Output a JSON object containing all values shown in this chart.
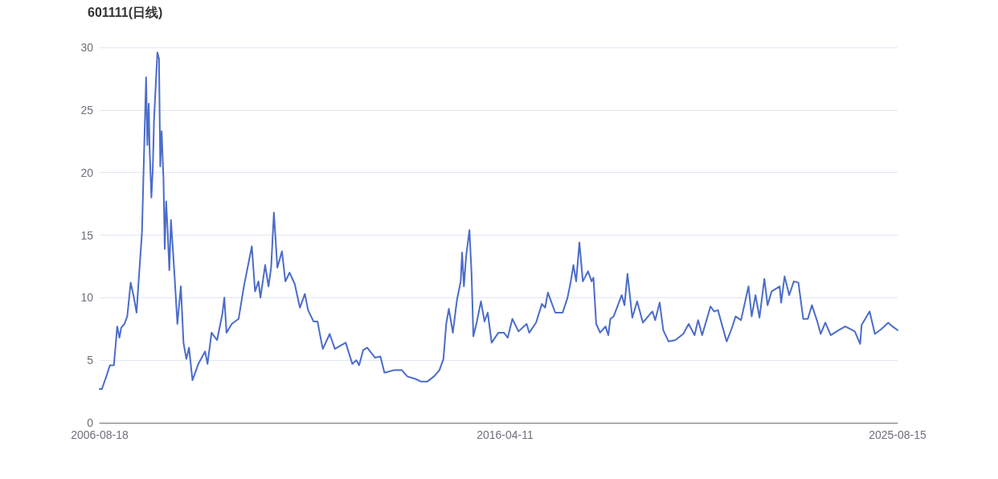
{
  "chart_data": {
    "type": "line",
    "title": "601111(日线)",
    "x": [
      "2006-08-18",
      "2006-09-07",
      "2006-10-11",
      "2006-11-16",
      "2006-12-20",
      "2007-01-18",
      "2007-02-06",
      "2007-02-22",
      "2007-03-22",
      "2007-04-15",
      "2007-05-15",
      "2007-06-12",
      "2007-07-05",
      "2007-07-28",
      "2007-08-21",
      "2007-09-07",
      "2007-09-26",
      "2007-10-07",
      "2007-10-19",
      "2007-10-26",
      "2007-11-11",
      "2007-11-23",
      "2007-12-04",
      "2007-12-15",
      "2008-01-02",
      "2008-01-16",
      "2008-01-27",
      "2008-02-08",
      "2008-02-24",
      "2008-03-06",
      "2008-03-18",
      "2008-03-29",
      "2008-04-15",
      "2008-04-29",
      "2008-05-26",
      "2008-06-24",
      "2008-07-24",
      "2008-08-16",
      "2008-09-10",
      "2008-10-03",
      "2008-11-02",
      "2008-12-23",
      "2009-02-20",
      "2009-03-13",
      "2009-04-17",
      "2009-06-04",
      "2009-07-20",
      "2009-08-06",
      "2009-08-25",
      "2009-10-10",
      "2009-12-08",
      "2010-01-23",
      "2010-04-02",
      "2010-04-30",
      "2010-05-30",
      "2010-06-16",
      "2010-07-27",
      "2010-08-25",
      "2010-09-17",
      "2010-10-11",
      "2010-11-10",
      "2010-12-20",
      "2011-01-19",
      "2011-02-24",
      "2011-04-10",
      "2011-05-25",
      "2011-07-07",
      "2011-08-04",
      "2011-09-20",
      "2011-10-25",
      "2011-11-29",
      "2011-12-11",
      "2012-02-08",
      "2012-03-24",
      "2012-06-26",
      "2012-08-23",
      "2012-09-27",
      "2012-10-21",
      "2012-11-25",
      "2012-12-30",
      "2013-03-09",
      "2013-04-24",
      "2013-05-29",
      "2013-08-19",
      "2013-10-28",
      "2013-12-14",
      "2014-02-23",
      "2014-04-09",
      "2014-06-06",
      "2014-08-03",
      "2014-09-19",
      "2014-10-24",
      "2014-11-17",
      "2014-12-10",
      "2015-01-14",
      "2015-02-18",
      "2015-03-23",
      "2015-04-04",
      "2015-04-20",
      "2015-05-09",
      "2015-06-07",
      "2015-06-25",
      "2015-07-11",
      "2015-08-11",
      "2015-09-15",
      "2015-10-16",
      "2015-11-13",
      "2015-12-17",
      "2016-02-14",
      "2016-04-01",
      "2016-05-05",
      "2016-06-14",
      "2016-08-07",
      "2016-10-16",
      "2016-11-08",
      "2017-01-06",
      "2017-02-26",
      "2017-03-26",
      "2017-04-19",
      "2017-06-22",
      "2017-08-25",
      "2017-10-07",
      "2017-11-04",
      "2017-11-27",
      "2017-12-21",
      "2018-01-18",
      "2018-02-17",
      "2018-04-03",
      "2018-05-04",
      "2018-05-20",
      "2018-06-13",
      "2018-07-17",
      "2018-09-02",
      "2018-09-26",
      "2018-10-14",
      "2018-11-12",
      "2019-01-21",
      "2019-02-14",
      "2019-03-12",
      "2019-04-23",
      "2019-06-04",
      "2019-07-24",
      "2019-10-15",
      "2019-11-08",
      "2019-12-17",
      "2020-01-17",
      "2020-03-03",
      "2020-04-30",
      "2020-07-09",
      "2020-08-25",
      "2020-10-15",
      "2020-11-15",
      "2020-12-20",
      "2021-03-03",
      "2021-04-03",
      "2021-05-07",
      "2021-06-11",
      "2021-07-21",
      "2021-09-02",
      "2021-10-07",
      "2021-11-23",
      "2021-12-27",
      "2022-01-27",
      "2022-02-24",
      "2022-03-29",
      "2022-05-03",
      "2022-06-14",
      "2022-07-12",
      "2022-08-16",
      "2022-10-25",
      "2022-11-07",
      "2022-12-07",
      "2023-01-16",
      "2023-02-25",
      "2023-04-06",
      "2023-05-18",
      "2023-06-27",
      "2023-08-01",
      "2023-09-17",
      "2023-10-17",
      "2023-11-26",
      "2024-01-12",
      "2024-03-20",
      "2024-05-18",
      "2024-08-08",
      "2024-09-24",
      "2024-10-06",
      "2024-12-15",
      "2025-01-30",
      "2025-03-29",
      "2025-05-26",
      "2025-07-01",
      "2025-08-15"
    ],
    "values": [
      2.7,
      2.7,
      3.6,
      4.6,
      4.6,
      7.7,
      6.8,
      7.6,
      7.9,
      8.5,
      11.2,
      10.0,
      8.8,
      12.0,
      15.2,
      21.2,
      27.6,
      22.2,
      25.5,
      22.0,
      18.0,
      20.3,
      24.2,
      26.3,
      29.6,
      29.1,
      20.5,
      23.3,
      19.5,
      13.9,
      17.7,
      15.8,
      12.2,
      16.2,
      12.4,
      7.9,
      10.9,
      6.4,
      5.1,
      6.0,
      3.4,
      4.7,
      5.7,
      4.7,
      7.2,
      6.6,
      8.7,
      10.0,
      7.2,
      7.9,
      8.3,
      10.9,
      14.1,
      10.5,
      11.3,
      10.0,
      12.6,
      10.9,
      12.4,
      16.8,
      12.4,
      13.7,
      11.3,
      12.0,
      11.1,
      9.2,
      10.3,
      9.0,
      8.1,
      8.1,
      6.4,
      5.9,
      7.1,
      5.9,
      6.4,
      4.7,
      5.0,
      4.6,
      5.8,
      6.0,
      5.2,
      5.3,
      4.0,
      4.2,
      4.2,
      3.7,
      3.5,
      3.3,
      3.3,
      3.7,
      4.2,
      5.1,
      7.9,
      9.1,
      7.2,
      9.8,
      11.3,
      13.6,
      10.9,
      13.3,
      15.4,
      12.0,
      6.9,
      8.1,
      9.7,
      8.1,
      8.8,
      6.4,
      7.2,
      7.2,
      6.8,
      8.3,
      7.3,
      7.9,
      7.2,
      8.0,
      9.5,
      9.2,
      10.4,
      8.8,
      8.8,
      10.0,
      11.3,
      12.6,
      11.3,
      14.4,
      11.3,
      12.1,
      11.3,
      11.6,
      7.9,
      7.2,
      7.7,
      7.0,
      8.3,
      8.5,
      10.2,
      9.4,
      11.9,
      8.4,
      9.7,
      8.0,
      8.9,
      8.2,
      9.6,
      7.4,
      6.5,
      6.6,
      7.1,
      7.9,
      7.0,
      8.2,
      7.0,
      9.3,
      8.9,
      9.0,
      7.8,
      6.5,
      7.5,
      8.5,
      8.2,
      9.6,
      10.9,
      8.5,
      10.2,
      8.4,
      11.5,
      9.4,
      10.5,
      10.9,
      9.6,
      11.7,
      10.2,
      11.3,
      11.2,
      8.3,
      8.3,
      9.4,
      8.1,
      7.1,
      8.0,
      7.0,
      7.4,
      7.7,
      7.3,
      6.3,
      7.8,
      8.9,
      7.1,
      7.5,
      8.0,
      7.7,
      7.4
    ],
    "color": "#4b6cc9",
    "xlim": [
      "2006-08-18",
      "2025-08-15"
    ],
    "xticks": [
      "2006-08-18",
      "2016-04-11",
      "2025-08-15"
    ],
    "ylim": [
      0,
      30
    ],
    "yticks": [
      0,
      5,
      10,
      15,
      20,
      25,
      30
    ],
    "grid": "y",
    "marker": "none",
    "line_style": "solid"
  }
}
